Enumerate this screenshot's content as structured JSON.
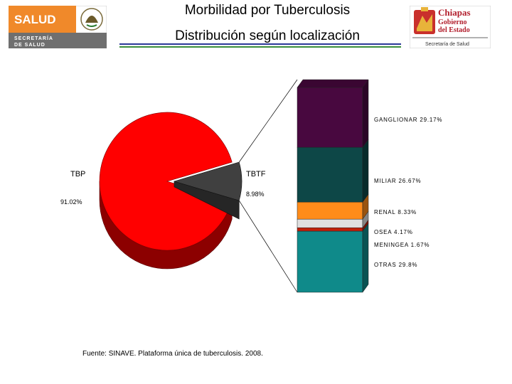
{
  "header": {
    "title": "Morbilidad por Tuberculosis",
    "subtitle": "Distribución según localización",
    "logo_left": {
      "text_main": "SALUD",
      "text_sub1": "SECRETARÍA",
      "text_sub2": "DE SALUD",
      "color": "#f0892a"
    },
    "logo_right": {
      "text_main": "Chiapas",
      "text_sub1": "Gobierno",
      "text_sub2": "del Estado",
      "text_sub3": "Secretaría de Salud",
      "color": "#b21f2d"
    }
  },
  "chart_data": [
    {
      "type": "pie",
      "slices": [
        {
          "label": "TBP",
          "value_label": "91.02%",
          "value": 91.02,
          "color": "#ff0000"
        },
        {
          "label": "TBTF",
          "value_label": "8.98%",
          "value": 8.98,
          "color": "#404040"
        }
      ]
    },
    {
      "type": "bar",
      "stacked": true,
      "segments": [
        {
          "label": "OTRAS  29.8%",
          "value": 29.8,
          "color": "#0f8a8a"
        },
        {
          "label": "MENINGEA  1.67%",
          "value": 1.67,
          "color": "#c0200a"
        },
        {
          "label": "OSEA  4.17%",
          "value": 4.17,
          "color": "#e0e0e0"
        },
        {
          "label": "RENAL  8.33%",
          "value": 8.33,
          "color": "#ff8c1a"
        },
        {
          "label": "MILIAR  26.67%",
          "value": 26.67,
          "color": "#0d4747"
        },
        {
          "label": "GANGLIONAR  29.17%",
          "value": 29.17,
          "color": "#48083f"
        }
      ]
    }
  ],
  "footer": {
    "source": "Fuente: SINAVE. Plataforma única de tuberculosis. 2008."
  }
}
